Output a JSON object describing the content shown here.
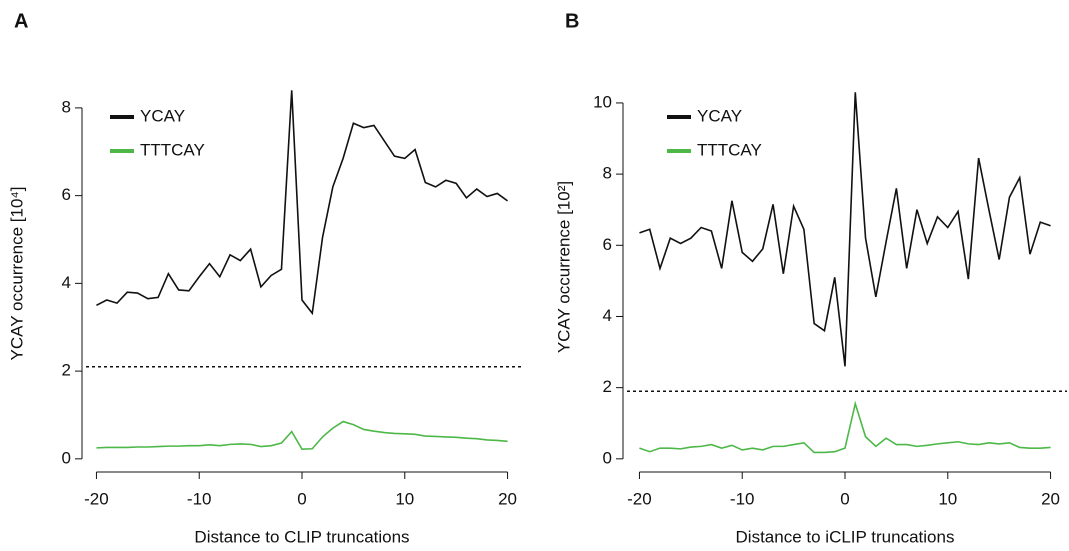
{
  "chart_data": [
    {
      "type": "line",
      "panel_label": "A",
      "xlabel": "Distance to CLIP truncations",
      "ylabel": "YCAY occurrence [10⁴]",
      "x": [
        -20,
        -19,
        -18,
        -17,
        -16,
        -15,
        -14,
        -13,
        -12,
        -11,
        -10,
        -9,
        -8,
        -7,
        -6,
        -5,
        -4,
        -3,
        -2,
        -1,
        0,
        1,
        2,
        3,
        4,
        5,
        6,
        7,
        8,
        9,
        10,
        11,
        12,
        13,
        14,
        15,
        16,
        17,
        18,
        19,
        20
      ],
      "series": [
        {
          "name": "YCAY",
          "color": "#111111",
          "values": [
            3.5,
            3.62,
            3.55,
            3.8,
            3.78,
            3.65,
            3.68,
            4.22,
            3.85,
            3.83,
            4.15,
            4.45,
            4.15,
            4.65,
            4.52,
            4.78,
            3.92,
            4.18,
            4.32,
            8.4,
            3.62,
            3.32,
            5.05,
            6.2,
            6.85,
            7.65,
            7.55,
            7.6,
            7.25,
            6.9,
            6.85,
            7.05,
            6.3,
            6.2,
            6.35,
            6.28,
            5.95,
            6.15,
            5.98,
            6.05,
            5.88
          ]
        },
        {
          "name": "TTTCAY",
          "color": "#4db848",
          "values": [
            0.25,
            0.26,
            0.26,
            0.26,
            0.27,
            0.27,
            0.28,
            0.29,
            0.29,
            0.3,
            0.3,
            0.32,
            0.3,
            0.33,
            0.34,
            0.33,
            0.28,
            0.3,
            0.36,
            0.62,
            0.22,
            0.23,
            0.5,
            0.7,
            0.85,
            0.78,
            0.67,
            0.63,
            0.6,
            0.58,
            0.57,
            0.56,
            0.52,
            0.51,
            0.5,
            0.49,
            0.47,
            0.46,
            0.43,
            0.42,
            0.4
          ]
        }
      ],
      "hline": 2.1,
      "xlim": [
        -21.6,
        21.6
      ],
      "xticks": [
        -20,
        -10,
        0,
        10,
        20
      ],
      "ylim": [
        -0.3,
        8.75
      ],
      "yticks": [
        0,
        2,
        4,
        6,
        8
      ],
      "legend": "upper left"
    },
    {
      "type": "line",
      "panel_label": "B",
      "xlabel": "Distance to iCLIP truncations",
      "ylabel": "YCAY occurrence [10²]",
      "x": [
        -20,
        -19,
        -18,
        -17,
        -16,
        -15,
        -14,
        -13,
        -12,
        -11,
        -10,
        -9,
        -8,
        -7,
        -6,
        -5,
        -4,
        -3,
        -2,
        -1,
        0,
        1,
        2,
        3,
        4,
        5,
        6,
        7,
        8,
        9,
        10,
        11,
        12,
        13,
        14,
        15,
        16,
        17,
        18,
        19,
        20
      ],
      "series": [
        {
          "name": "YCAY",
          "color": "#111111",
          "values": [
            6.35,
            6.45,
            5.35,
            6.2,
            6.05,
            6.2,
            6.5,
            6.4,
            5.35,
            7.25,
            5.8,
            5.55,
            5.9,
            7.15,
            5.2,
            7.1,
            6.45,
            3.8,
            3.6,
            5.1,
            2.6,
            10.3,
            6.2,
            4.55,
            6.1,
            7.6,
            5.35,
            7.0,
            6.05,
            6.8,
            6.5,
            6.95,
            5.05,
            8.45,
            7.0,
            5.6,
            7.35,
            7.9,
            5.75,
            6.65,
            6.55
          ]
        },
        {
          "name": "TTTCAY",
          "color": "#4db848",
          "values": [
            0.3,
            0.2,
            0.3,
            0.3,
            0.28,
            0.33,
            0.35,
            0.4,
            0.3,
            0.38,
            0.25,
            0.3,
            0.25,
            0.35,
            0.35,
            0.4,
            0.45,
            0.18,
            0.18,
            0.2,
            0.3,
            1.55,
            0.62,
            0.35,
            0.58,
            0.4,
            0.4,
            0.35,
            0.38,
            0.42,
            0.45,
            0.48,
            0.42,
            0.4,
            0.45,
            0.42,
            0.45,
            0.32,
            0.3,
            0.3,
            0.32
          ]
        }
      ],
      "hline": 1.9,
      "xlim": [
        -21.6,
        21.6
      ],
      "xticks": [
        -20,
        -10,
        0,
        10,
        20
      ],
      "ylim": [
        -0.37,
        11.15
      ],
      "yticks": [
        0,
        2,
        4,
        6,
        8,
        10
      ],
      "legend": "upper left"
    }
  ]
}
